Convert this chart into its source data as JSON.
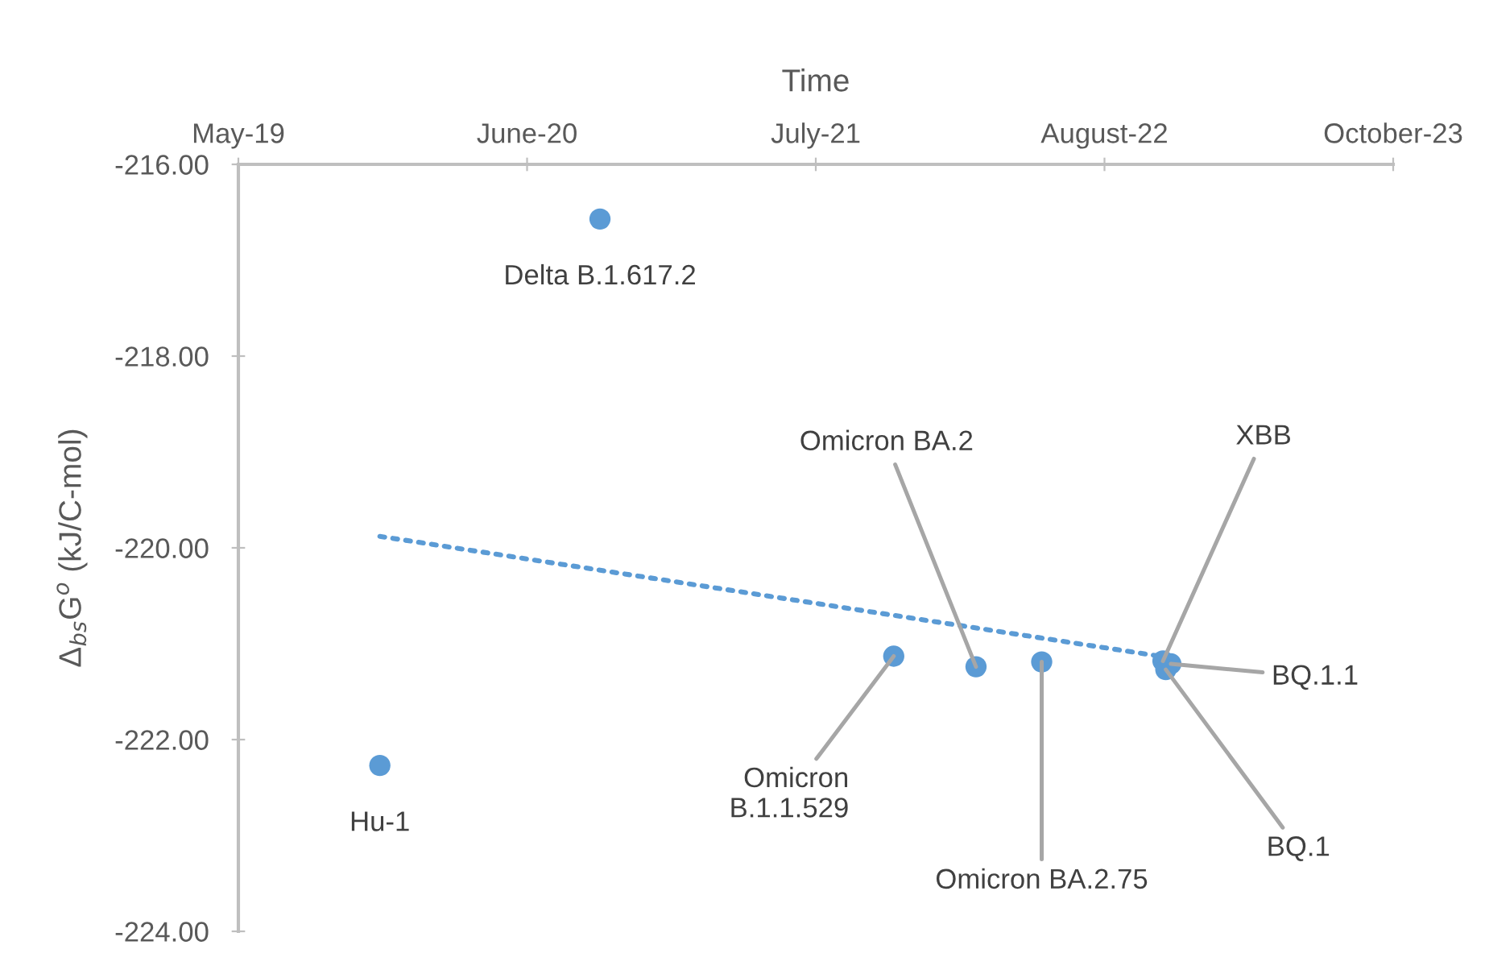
{
  "chart_data": {
    "type": "scatter",
    "xlabel": "Time",
    "ylabel": "Δ$_{bs}$G$^{o}$ (kJ/C-mol)",
    "xlim": [
      "2019-05-16",
      "2023-10-02"
    ],
    "xticks": [
      {
        "value": "2019-05-16",
        "label": "May-19"
      },
      {
        "value": "2020-06-19",
        "label": "June-20"
      },
      {
        "value": "2021-07-24",
        "label": "July-21"
      },
      {
        "value": "2022-08-28",
        "label": "August-22"
      },
      {
        "value": "2023-10-02",
        "label": "October-23"
      }
    ],
    "ylim": [
      -224,
      -216
    ],
    "yticks": [
      {
        "value": -224,
        "label": "-224.00"
      },
      {
        "value": -222,
        "label": "-222.00"
      },
      {
        "value": -220,
        "label": "-220.00"
      },
      {
        "value": -218,
        "label": "-218.00"
      },
      {
        "value": -216,
        "label": "-216.00"
      }
    ],
    "grid": false,
    "legend": false,
    "series": [
      {
        "color": "#5b9bd5",
        "marker": "circle",
        "x": [
          "2019-11-28",
          "2020-09-28",
          "2021-11-09",
          "2022-03-03",
          "2022-06-02",
          "2022-11-17",
          "2022-11-28",
          "2022-11-21"
        ],
        "values": [
          -222.27,
          -216.57,
          -221.13,
          -221.24,
          -221.19,
          -221.18,
          -221.21,
          -221.27
        ]
      },
      {
        "type": "line",
        "color": "#5b9bd5",
        "line_style": "dotted",
        "x": [
          "2019-11-28",
          "2022-11-21"
        ],
        "values": [
          -219.88,
          -221.14
        ]
      }
    ],
    "annotations": [
      {
        "text": "Hu-1",
        "x": "2019-11-28",
        "y": -222.27
      },
      {
        "text": "Delta B.1.617.2",
        "x": "2020-09-28",
        "y": -216.57
      },
      {
        "text": "Omicron\nB.1.1.529",
        "x": "2021-11-09",
        "y": -221.13
      },
      {
        "text": "Omicron BA.2",
        "x": "2022-03-03",
        "y": -221.24
      },
      {
        "text": "Omicron BA.2.75",
        "x": "2022-06-02",
        "y": -221.19
      },
      {
        "text": "XBB",
        "x": "2022-11-17",
        "y": -221.18
      },
      {
        "text": "BQ.1.1",
        "x": "2022-11-28",
        "y": -221.21
      },
      {
        "text": "BQ.1",
        "x": "2022-11-21",
        "y": -221.27
      }
    ]
  }
}
